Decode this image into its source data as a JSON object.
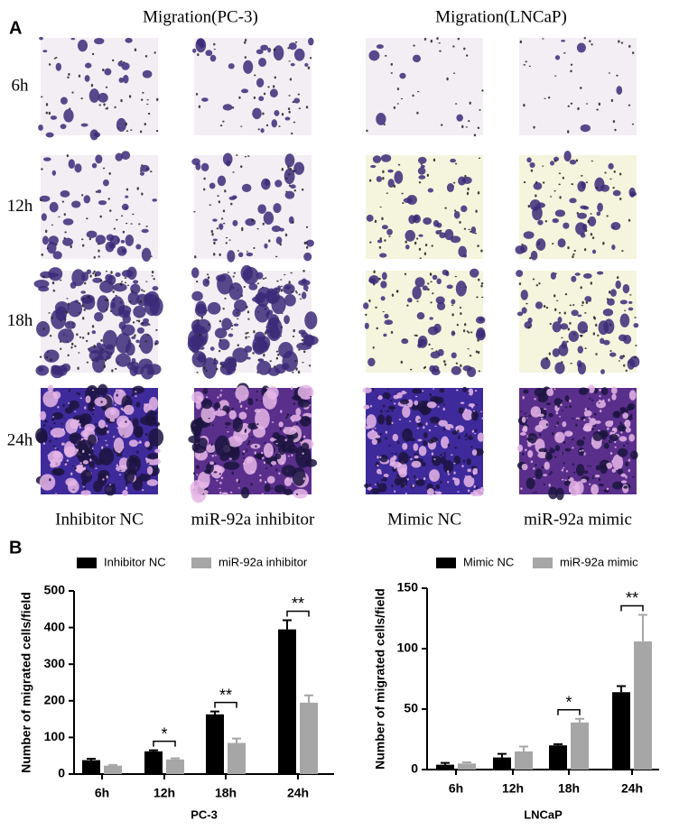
{
  "figure_a": {
    "label": "A",
    "titles": [
      "Migration(PC-3)",
      "Migration(LNCaP)"
    ],
    "rows": [
      "6h",
      "12h",
      "18h",
      "24h"
    ],
    "columns": [
      "Inhibitor NC",
      "miR-92a inhibitor",
      "Mimic NC",
      "miR-92a mimic"
    ]
  },
  "figure_b": {
    "label": "B"
  },
  "chart_data": [
    {
      "type": "bar",
      "x_label": "PC-3",
      "y_label": "Number of migrated cells/field",
      "categories": [
        "6h",
        "12h",
        "18h",
        "24h"
      ],
      "series": [
        {
          "name": "Inhibitor NC",
          "color": "#000000",
          "values": [
            38,
            62,
            163,
            395
          ],
          "errors": [
            4,
            3,
            8,
            25
          ]
        },
        {
          "name": "miR-92a inhibitor",
          "color": "#a6a6a6",
          "values": [
            23,
            40,
            85,
            195
          ],
          "errors": [
            2,
            3,
            12,
            20
          ]
        }
      ],
      "significance": [
        null,
        "*",
        "**",
        "**"
      ],
      "ylim": [
        0,
        500
      ],
      "yticks": [
        0,
        100,
        200,
        300,
        400,
        500
      ],
      "legend": "top-left"
    },
    {
      "type": "bar",
      "x_label": "LNCaP",
      "y_label": "Number of migrated cells/field",
      "categories": [
        "6h",
        "12h",
        "18h",
        "24h"
      ],
      "series": [
        {
          "name": "Mimic NC",
          "color": "#000000",
          "values": [
            4,
            10,
            20,
            64
          ],
          "errors": [
            1.5,
            3,
            1,
            5
          ]
        },
        {
          "name": "miR-92a mimic",
          "color": "#a6a6a6",
          "values": [
            5,
            15,
            39,
            106
          ],
          "errors": [
            1,
            4,
            3,
            22
          ]
        }
      ],
      "significance": [
        null,
        null,
        "*",
        "**"
      ],
      "ylim": [
        0,
        150
      ],
      "yticks": [
        0,
        50,
        100,
        150
      ],
      "legend": "top-left"
    }
  ]
}
